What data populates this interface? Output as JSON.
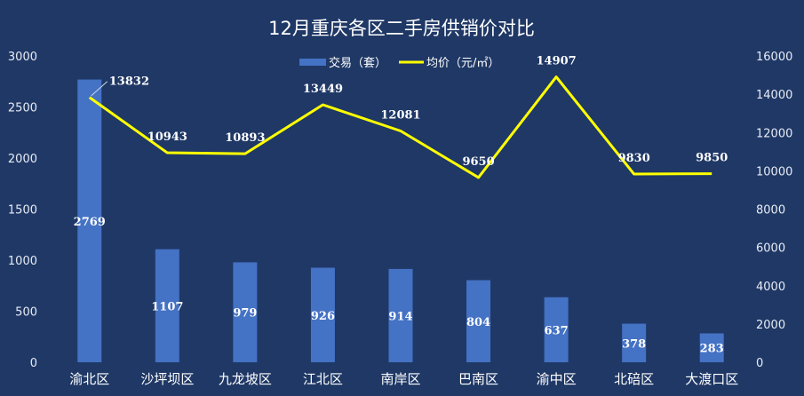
{
  "colors": {
    "background": "#1f3866",
    "bar": "#4472c4",
    "line": "#ffff00",
    "text": "#ffffff"
  },
  "chart_data": {
    "type": "bar",
    "title": "12月重庆各区二手房供销价对比",
    "categories": [
      "渝北区",
      "沙坪坝区",
      "九龙坡区",
      "江北区",
      "南岸区",
      "巴南区",
      "渝中区",
      "北碚区",
      "大渡口区"
    ],
    "series": [
      {
        "name": "交易（套）",
        "type": "bar",
        "axis": "left",
        "values": [
          2769,
          1107,
          979,
          926,
          914,
          804,
          637,
          378,
          283
        ]
      },
      {
        "name": "均价（元/㎡）",
        "type": "line",
        "axis": "right",
        "values": [
          13832,
          10943,
          10893,
          13449,
          12081,
          9650,
          14907,
          9830,
          9850
        ]
      }
    ],
    "y_left": {
      "min": 0,
      "max": 3000,
      "ticks": [
        "0",
        "500",
        "1000",
        "1500",
        "2000",
        "2500",
        "3000"
      ]
    },
    "y_right": {
      "min": 0,
      "max": 16000,
      "ticks": [
        "0",
        "2000",
        "4000",
        "6000",
        "8000",
        "10000",
        "12000",
        "14000",
        "16000"
      ]
    },
    "grid": false,
    "legend_position": "top-center"
  }
}
